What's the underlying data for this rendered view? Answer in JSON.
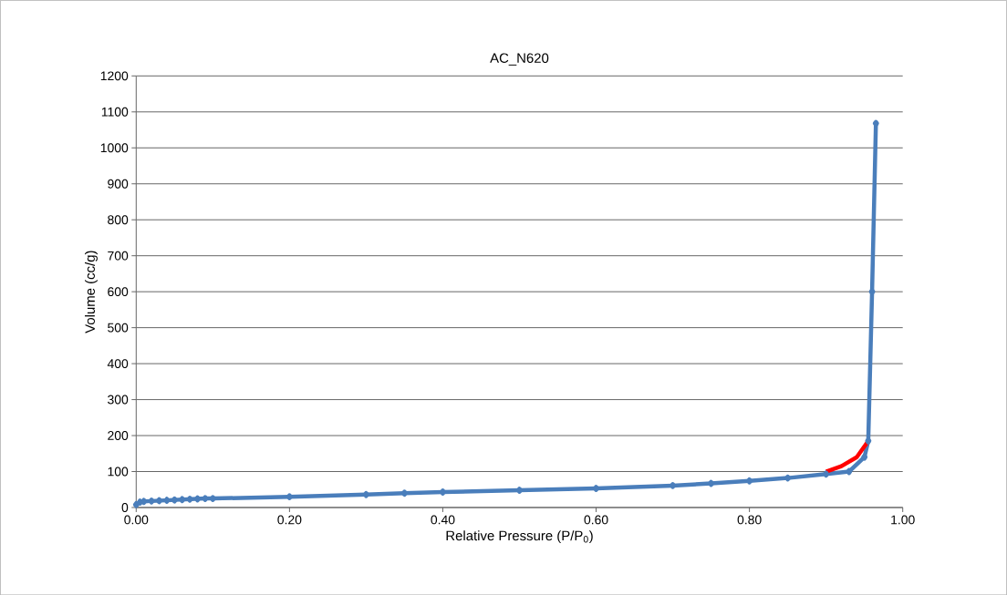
{
  "chart_data": {
    "type": "line",
    "title": "AC_N620",
    "xlabel": "Relative Pressure (P/P$_{0}$)",
    "ylabel": "Volume (cc/g)",
    "xlim": [
      0,
      1
    ],
    "ylim": [
      0,
      1200
    ],
    "xticks": [
      {
        "value": 0,
        "label": "0.00"
      },
      {
        "value": 0.2,
        "label": "0.20"
      },
      {
        "value": 0.4,
        "label": "0.40"
      },
      {
        "value": 0.6,
        "label": "0.60"
      },
      {
        "value": 0.8,
        "label": "0.80"
      },
      {
        "value": 1,
        "label": "1.00"
      }
    ],
    "yticks": [
      0,
      100,
      200,
      300,
      400,
      500,
      600,
      700,
      800,
      900,
      1000,
      1100,
      1200
    ],
    "grid": "y",
    "marker": "diamond",
    "line_style": "solid",
    "series": [
      {
        "color": "#4a7ebb",
        "x": [
          0.0,
          0.005,
          0.01,
          0.02,
          0.03,
          0.04,
          0.05,
          0.06,
          0.07,
          0.08,
          0.09,
          0.1,
          0.2,
          0.3,
          0.35,
          0.4,
          0.5,
          0.6,
          0.7,
          0.75,
          0.8,
          0.85,
          0.9,
          0.93,
          0.95,
          0.955,
          0.96,
          0.965
        ],
        "values": [
          8,
          15,
          17,
          18,
          19,
          20,
          21,
          22,
          23,
          24,
          25,
          25,
          30,
          36,
          40,
          43,
          48,
          53,
          61,
          67,
          74,
          82,
          93,
          100,
          140,
          185,
          600,
          1068
        ]
      },
      {
        "color": "#ff0000",
        "marker": "none",
        "x": [
          0.9,
          0.92,
          0.94,
          0.955
        ],
        "values": [
          100,
          115,
          140,
          185
        ]
      }
    ]
  }
}
